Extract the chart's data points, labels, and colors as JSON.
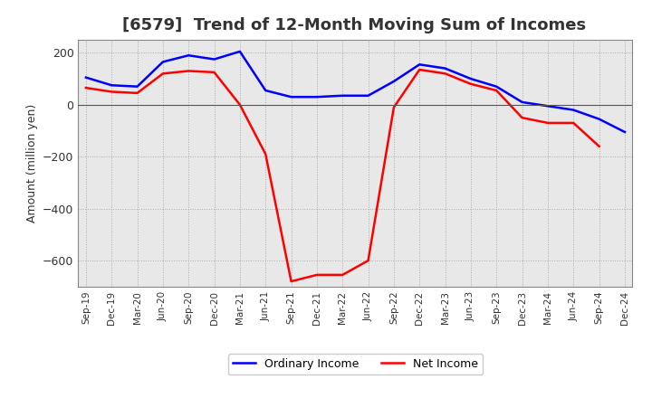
{
  "title": "[6579]  Trend of 12-Month Moving Sum of Incomes",
  "ylabel": "Amount (million yen)",
  "x_labels": [
    "Sep-19",
    "Dec-19",
    "Mar-20",
    "Jun-20",
    "Sep-20",
    "Dec-20",
    "Mar-21",
    "Jun-21",
    "Sep-21",
    "Dec-21",
    "Mar-22",
    "Jun-22",
    "Sep-22",
    "Dec-22",
    "Mar-23",
    "Jun-23",
    "Sep-23",
    "Dec-23",
    "Mar-24",
    "Jun-24",
    "Sep-24",
    "Dec-24"
  ],
  "ordinary_income": [
    105,
    75,
    70,
    165,
    190,
    175,
    205,
    55,
    30,
    30,
    35,
    35,
    90,
    155,
    140,
    100,
    70,
    10,
    -5,
    -20,
    -55,
    -105
  ],
  "net_income": [
    65,
    50,
    45,
    120,
    130,
    125,
    0,
    -190,
    -680,
    -655,
    -655,
    -600,
    -10,
    135,
    120,
    80,
    55,
    -50,
    -70,
    -70,
    -160,
    null
  ],
  "ordinary_color": "#0000ff",
  "net_color": "#ff0000",
  "background_color": "#ffffff",
  "plot_bg_color": "#e8e8e8",
  "ylim": [
    -700,
    250
  ],
  "yticks": [
    -600,
    -400,
    -200,
    0,
    200
  ],
  "title_fontsize": 13,
  "legend_labels": [
    "Ordinary Income",
    "Net Income"
  ]
}
